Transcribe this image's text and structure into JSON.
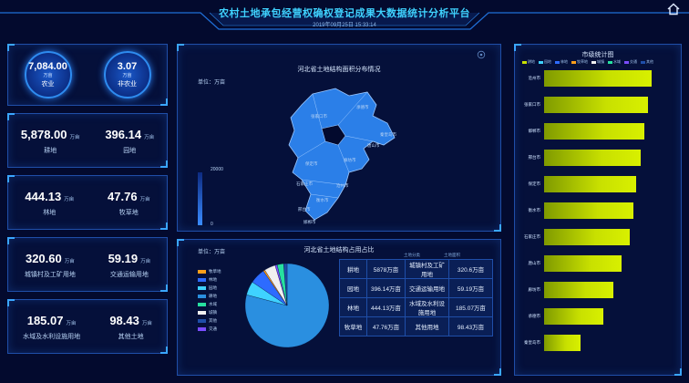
{
  "header": {
    "title": "农村土地承包经营权确权登记成果大数据统计分析平台",
    "datetime": "2019年09月25日 15:33:14"
  },
  "summary": {
    "agri": {
      "value": "7,084.00",
      "unit": "万亩",
      "label": "农业"
    },
    "nonagri": {
      "value": "3.07",
      "unit": "万亩",
      "label": "非农业"
    }
  },
  "stats": [
    {
      "left": {
        "value": "5,878.00",
        "unit": "万亩",
        "label": "耕地"
      },
      "right": {
        "value": "396.14",
        "unit": "万亩",
        "label": "园地"
      }
    },
    {
      "left": {
        "value": "444.13",
        "unit": "万亩",
        "label": "林地"
      },
      "right": {
        "value": "47.76",
        "unit": "万亩",
        "label": "牧草地"
      }
    },
    {
      "left": {
        "value": "320.60",
        "unit": "万亩",
        "label": "城镇村及工矿用地"
      },
      "right": {
        "value": "59.19",
        "unit": "万亩",
        "label": "交通运输用地"
      }
    },
    {
      "left": {
        "value": "185.07",
        "unit": "万亩",
        "label": "水域及水利设施用地"
      },
      "right": {
        "value": "98.43",
        "unit": "万亩",
        "label": "其他土地"
      }
    }
  ],
  "map_panel": {
    "title": "河北省土地结构面积分布情况",
    "unit": "单位：万亩",
    "scale_max": "20000",
    "scale_min": "0",
    "cities": [
      "张家口市",
      "承德市",
      "秦皇岛市",
      "唐山市",
      "保定市",
      "廊坊市",
      "沧州市",
      "石家庄市",
      "衡水市",
      "邢台市",
      "邯郸市"
    ]
  },
  "pie_panel": {
    "title": "河北省土地结构占用占比",
    "unit": "单位：万亩",
    "legend": [
      {
        "name": "牧草地",
        "color": "#ff9f1a"
      },
      {
        "name": "林地",
        "color": "#2d6bff"
      },
      {
        "name": "园地",
        "color": "#3fd2ff"
      },
      {
        "name": "耕地",
        "color": "#2a8fe0"
      },
      {
        "name": "水域",
        "color": "#27e0a0"
      },
      {
        "name": "城镇",
        "color": "#f0f0f0"
      },
      {
        "name": "其他",
        "color": "#1f4ea8"
      },
      {
        "name": "交通",
        "color": "#7a4cff"
      }
    ],
    "slices": [
      {
        "name": "耕地",
        "value": 5878,
        "color": "#2a8fe0"
      },
      {
        "name": "园地",
        "value": 396.14,
        "color": "#3fd2ff"
      },
      {
        "name": "林地",
        "value": 444.13,
        "color": "#2d6bff"
      },
      {
        "name": "牧草地",
        "value": 47.76,
        "color": "#ff9f1a"
      },
      {
        "name": "城镇",
        "value": 320.6,
        "color": "#f0f0f0"
      },
      {
        "name": "交通",
        "value": 59.19,
        "color": "#7a4cff"
      },
      {
        "name": "水域",
        "value": 185.07,
        "color": "#27e0a0"
      },
      {
        "name": "其他",
        "value": 98.43,
        "color": "#1f4ea8"
      }
    ],
    "table_heads": [
      "土地分类",
      "土地面积"
    ],
    "table": [
      [
        "耕地",
        "5878万亩",
        "城镇村及工矿用地",
        "320.6万亩"
      ],
      [
        "园地",
        "396.14万亩",
        "交通运输用地",
        "59.19万亩"
      ],
      [
        "林地",
        "444.13万亩",
        "水域及水利设施用地",
        "185.07万亩"
      ],
      [
        "牧草地",
        "47.76万亩",
        "其他用地",
        "98.43万亩"
      ]
    ]
  },
  "bar_panel": {
    "title": "市级统计图",
    "legend": [
      "耕地",
      "园地",
      "林地",
      "牧草地",
      "城镇",
      "水域",
      "交通",
      "其他"
    ],
    "bars": [
      {
        "city": "沧州市",
        "value": 100
      },
      {
        "city": "张家口市",
        "value": 97
      },
      {
        "city": "邯郸市",
        "value": 93
      },
      {
        "city": "邢台市",
        "value": 90
      },
      {
        "city": "保定市",
        "value": 86
      },
      {
        "city": "衡水市",
        "value": 83
      },
      {
        "city": "石家庄市",
        "value": 80
      },
      {
        "city": "唐山市",
        "value": 72
      },
      {
        "city": "廊坊市",
        "value": 64
      },
      {
        "city": "承德市",
        "value": 55
      },
      {
        "city": "秦皇岛市",
        "value": 34
      }
    ]
  }
}
